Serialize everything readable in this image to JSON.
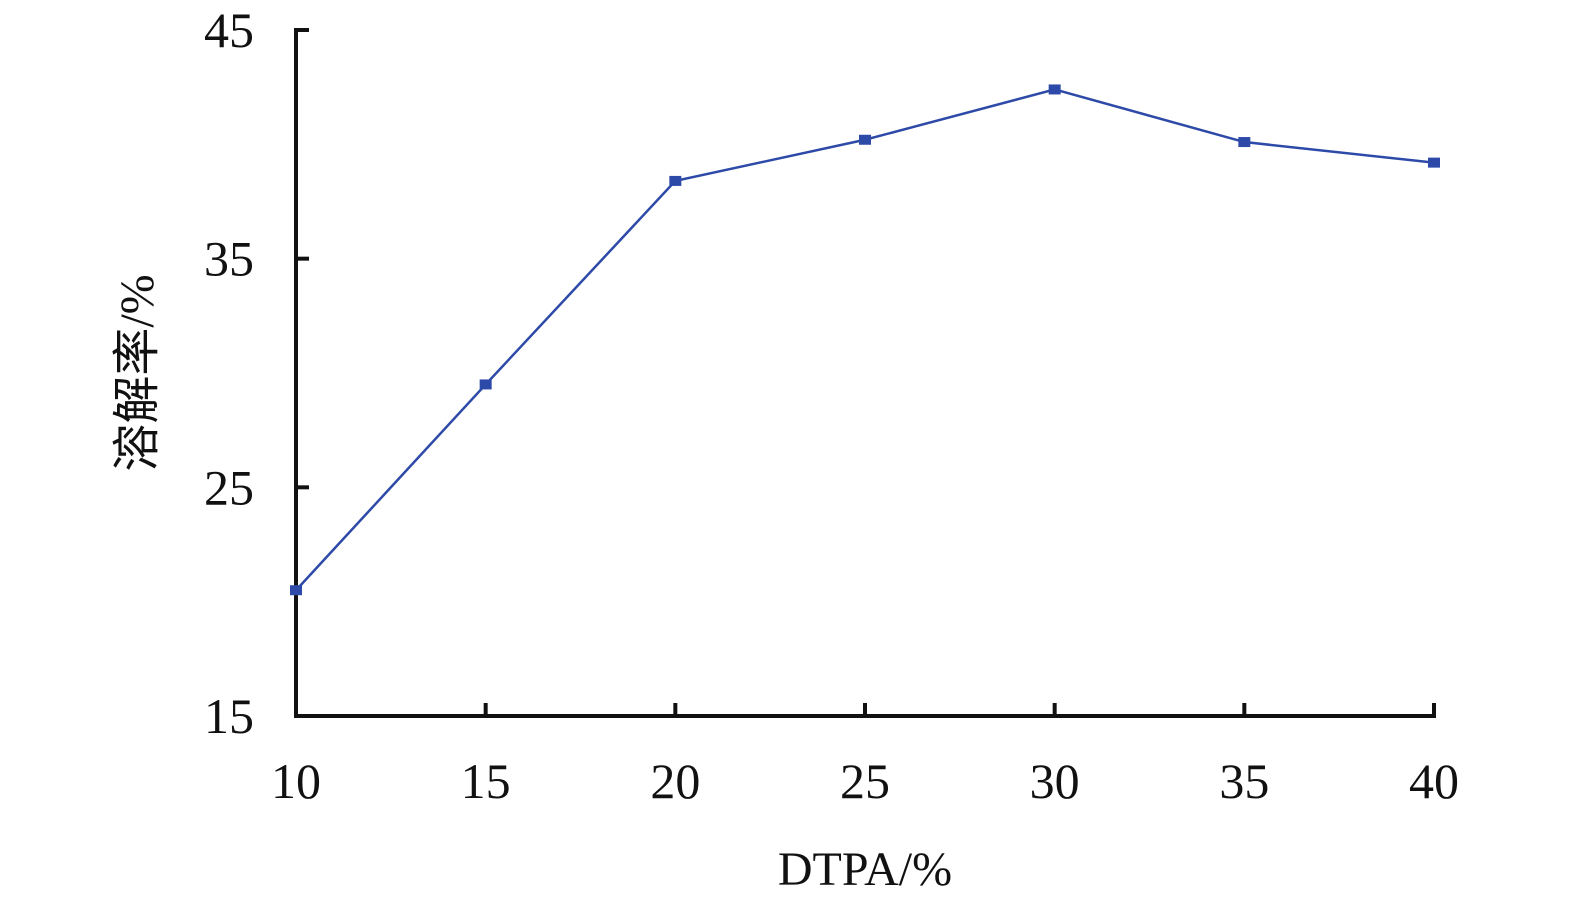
{
  "chart_data": {
    "type": "line",
    "x": [
      10,
      15,
      20,
      25,
      30,
      35,
      40
    ],
    "series": [
      {
        "values": [
          20.5,
          29.5,
          38.4,
          40.2,
          42.4,
          40.1,
          39.2
        ]
      }
    ],
    "xlabel": "DTPA/%",
    "ylabel": "溶解率/%",
    "xlim": [
      10,
      40
    ],
    "ylim": [
      15,
      45
    ],
    "x_ticks": [
      "10",
      "15",
      "20",
      "25",
      "30",
      "35",
      "40"
    ],
    "y_ticks": [
      "15",
      "25",
      "35",
      "45"
    ],
    "grid": false,
    "legend": "none",
    "series_color": "#2e4aa8",
    "marker": "square"
  }
}
